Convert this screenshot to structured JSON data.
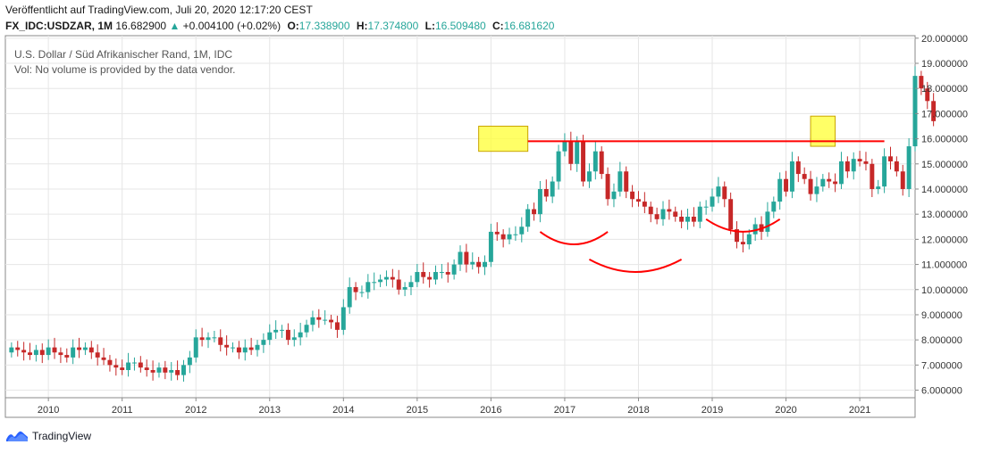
{
  "header": {
    "published": "Veröffentlicht auf TradingView.com, Juli 20, 2020 12:17:20 CEST",
    "symbol": "FX_IDC:USDZAR, 1M",
    "last": "16.682900",
    "change_arrow": "▲",
    "change": "+0.004100 (+0.02%)",
    "open_label": "O:",
    "open": "17.338900",
    "high_label": "H:",
    "high": "17.374800",
    "low_label": "L:",
    "low": "16.509480",
    "close_label": "C:",
    "close": "16.681620"
  },
  "legend": {
    "title": "U.S. Dollar / Süd Afrikanischer Rand, 1M, IDC",
    "vol": "Vol: No volume is provided by the data vendor."
  },
  "footer": {
    "brand": "TradingView",
    "logo_icon": "tradingview-logo-icon"
  },
  "colors": {
    "up": "#26a69a",
    "down": "#c62828",
    "line": "#ff0000",
    "highlight": "#ffff33",
    "grid": "#e6e6e6"
  },
  "chart_data": {
    "type": "candlestick",
    "title": "U.S. Dollar / Süd Afrikanischer Rand, 1M, IDC",
    "x_ticks": [
      "2010",
      "2011",
      "2012",
      "2013",
      "2014",
      "2015",
      "2016",
      "2017",
      "2018",
      "2019",
      "2020",
      "2021"
    ],
    "y_ticks": [
      "6.000000",
      "7.000000",
      "8.000000",
      "9.000000",
      "10.000000",
      "11.000000",
      "12.000000",
      "13.000000",
      "14.000000",
      "15.000000",
      "16.000000",
      "17.000000",
      "18.000000",
      "19.000000",
      "20.000000"
    ],
    "xlim": [
      "2009-06",
      "2021-10"
    ],
    "ylim": [
      5.7,
      20.1
    ],
    "grid": true,
    "start_month": "2009-07",
    "closes": [
      7.7,
      7.6,
      7.5,
      7.4,
      7.6,
      7.4,
      7.7,
      7.5,
      7.4,
      7.3,
      7.7,
      7.6,
      7.7,
      7.5,
      7.3,
      7.2,
      7.0,
      6.9,
      6.8,
      7.1,
      7.1,
      6.9,
      6.8,
      6.7,
      6.9,
      6.7,
      6.8,
      6.6,
      7.0,
      7.3,
      8.1,
      8.0,
      8.1,
      8.1,
      7.8,
      7.7,
      7.7,
      7.5,
      7.7,
      7.6,
      7.8,
      8.0,
      8.3,
      8.4,
      8.4,
      8.0,
      8.1,
      8.3,
      8.6,
      8.9,
      8.8,
      8.8,
      8.7,
      8.4,
      9.3,
      10.1,
      9.9,
      9.9,
      10.3,
      10.3,
      10.4,
      10.5,
      10.4,
      10.0,
      10.1,
      10.3,
      10.7,
      10.5,
      10.4,
      10.7,
      10.7,
      10.6,
      11.0,
      11.5,
      11.0,
      11.1,
      10.9,
      11.1,
      12.3,
      12.2,
      12.0,
      12.2,
      12.2,
      12.5,
      13.2,
      13.0,
      14.0,
      13.7,
      14.3,
      15.5,
      15.9,
      15.0,
      15.9,
      14.3,
      14.7,
      15.5,
      14.6,
      13.6,
      13.9,
      14.7,
      13.9,
      13.6,
      13.5,
      13.3,
      13.0,
      12.8,
      13.2,
      13.1,
      12.9,
      12.7,
      12.9,
      12.7,
      13.3,
      13.3,
      13.7,
      14.1,
      13.6,
      12.4,
      11.9,
      11.8,
      12.2,
      12.6,
      12.3,
      13.1,
      13.5,
      14.4,
      13.9,
      15.1,
      14.6,
      14.4,
      13.8,
      14.1,
      14.4,
      14.3,
      14.2,
      15.1,
      14.7,
      15.2,
      15.1,
      15.0,
      14.0,
      14.1,
      15.3,
      15.1,
      14.7,
      14.0,
      15.7,
      18.5,
      18.0,
      17.5,
      16.7
    ],
    "annotations": {
      "resistance_level": 15.9,
      "boxes": [
        {
          "from": "2015-11",
          "to": "2016-07",
          "low": 15.5,
          "high": 16.5
        },
        {
          "from": "2020-05",
          "to": "2020-09",
          "low": 15.7,
          "high": 16.9
        }
      ],
      "curves": [
        {
          "from": "2016-09",
          "to": "2017-08",
          "y_ends": 12.3,
          "y_bottom": 11.8
        },
        {
          "from": "2017-05",
          "to": "2018-08",
          "y_ends": 11.2,
          "y_bottom": 10.7
        },
        {
          "from": "2018-12",
          "to": "2019-12",
          "y_ends": 12.8,
          "y_bottom": 12.3
        }
      ]
    }
  }
}
